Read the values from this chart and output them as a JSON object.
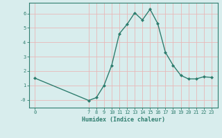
{
  "x": [
    0,
    7,
    8,
    9,
    10,
    11,
    12,
    13,
    14,
    15,
    16,
    17,
    18,
    19,
    20,
    21,
    22,
    23
  ],
  "y": [
    1.5,
    -0.05,
    0.15,
    1.0,
    2.4,
    4.6,
    5.25,
    6.05,
    5.55,
    6.3,
    5.3,
    3.3,
    2.4,
    1.7,
    1.45,
    1.45,
    1.6,
    1.55
  ],
  "line_color": "#2e7d6e",
  "marker": "D",
  "marker_size": 2.0,
  "line_width": 1.0,
  "xlabel": "Humidex (Indice chaleur)",
  "xlim": [
    -0.8,
    23.8
  ],
  "ylim": [
    -0.55,
    6.75
  ],
  "xticks": [
    0,
    7,
    8,
    9,
    10,
    11,
    12,
    13,
    14,
    15,
    16,
    17,
    18,
    19,
    20,
    21,
    22,
    23
  ],
  "yticks": [
    0,
    1,
    2,
    3,
    4,
    5,
    6
  ],
  "ytick_labels": [
    "-0",
    "1",
    "2",
    "3",
    "4",
    "5",
    "6"
  ],
  "bg_color": "#d8eded",
  "grid_color": "#e8b8b8",
  "font_color": "#2e7d6e",
  "tick_fontsize": 5.0,
  "xlabel_fontsize": 6.0
}
